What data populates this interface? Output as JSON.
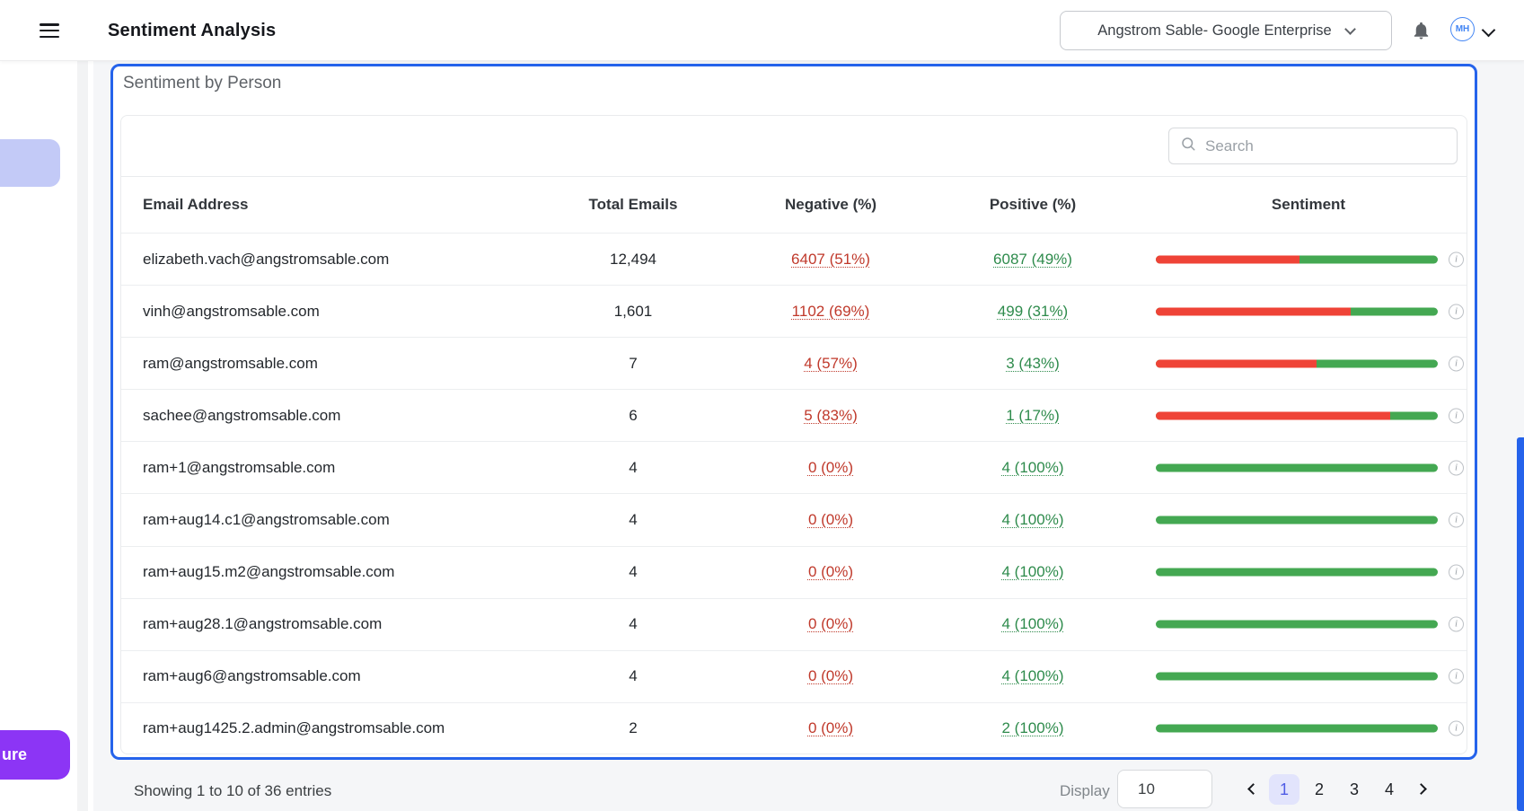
{
  "header": {
    "title": "Sentiment Analysis",
    "org_selector_label": "Angstrom Sable- Google Enterprise",
    "avatar_initials": "MH"
  },
  "side": {
    "floating_button_text": "ure"
  },
  "card": {
    "title": "Sentiment by Person",
    "search_placeholder": "Search",
    "search_value": "",
    "info_icon_glyph": "i"
  },
  "table": {
    "columns": [
      "Email Address",
      "Total Emails",
      "Negative (%)",
      "Positive (%)",
      "Sentiment"
    ],
    "rows": [
      {
        "email": "elizabeth.vach@angstromsable.com",
        "total": "12,494",
        "negative": "6407 (51%)",
        "positive": "6087 (49%)",
        "negative_pct": 51
      },
      {
        "email": "vinh@angstromsable.com",
        "total": "1,601",
        "negative": "1102 (69%)",
        "positive": "499 (31%)",
        "negative_pct": 69
      },
      {
        "email": "ram@angstromsable.com",
        "total": "7",
        "negative": "4 (57%)",
        "positive": "3 (43%)",
        "negative_pct": 57
      },
      {
        "email": "sachee@angstromsable.com",
        "total": "6",
        "negative": "5 (83%)",
        "positive": "1 (17%)",
        "negative_pct": 83
      },
      {
        "email": "ram+1@angstromsable.com",
        "total": "4",
        "negative": "0 (0%)",
        "positive": "4 (100%)",
        "negative_pct": 0
      },
      {
        "email": "ram+aug14.c1@angstromsable.com",
        "total": "4",
        "negative": "0 (0%)",
        "positive": "4 (100%)",
        "negative_pct": 0
      },
      {
        "email": "ram+aug15.m2@angstromsable.com",
        "total": "4",
        "negative": "0 (0%)",
        "positive": "4 (100%)",
        "negative_pct": 0
      },
      {
        "email": "ram+aug28.1@angstromsable.com",
        "total": "4",
        "negative": "0 (0%)",
        "positive": "4 (100%)",
        "negative_pct": 0
      },
      {
        "email": "ram+aug6@angstromsable.com",
        "total": "4",
        "negative": "0 (0%)",
        "positive": "4 (100%)",
        "negative_pct": 0
      },
      {
        "email": "ram+aug1425.2.admin@angstromsable.com",
        "total": "2",
        "negative": "0 (0%)",
        "positive": "2 (100%)",
        "negative_pct": 0
      }
    ]
  },
  "footer": {
    "showing_text": "Showing 1 to 10 of 36 entries",
    "display_label": "Display",
    "display_value": "10",
    "pages": [
      "1",
      "2",
      "3",
      "4"
    ],
    "active_page": "1"
  },
  "colors": {
    "accent_blue": "#2563eb",
    "bar_red": "#ef4337",
    "bar_green": "#44a852",
    "negative_text": "#c0392b",
    "positive_text": "#2e8b4c",
    "purple_button": "#8c35f5",
    "lavender_button": "#c3caf7",
    "active_page_bg": "#e2e4fc",
    "active_page_text": "#4f5ce5"
  }
}
